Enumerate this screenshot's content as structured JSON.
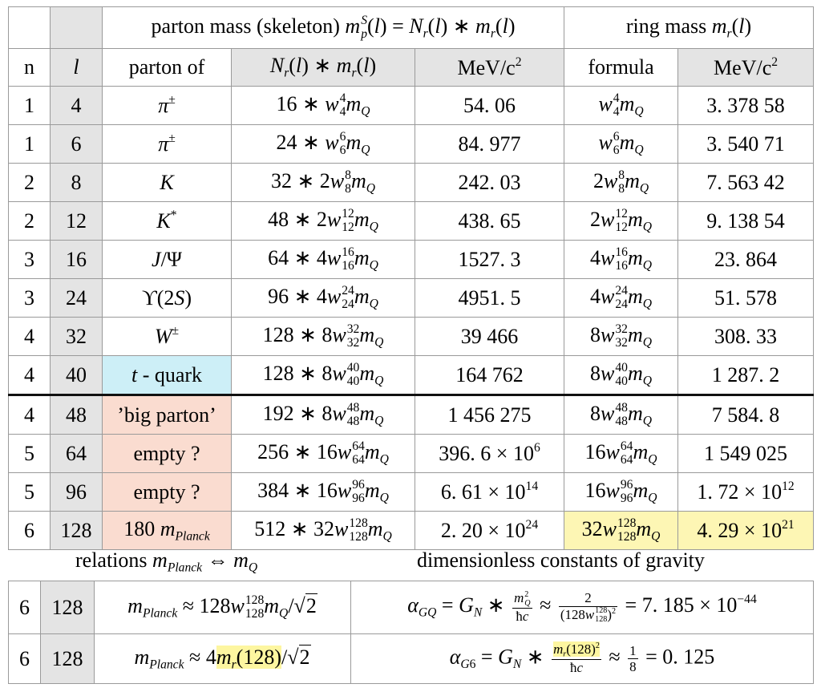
{
  "table": {
    "group_headers": [
      "parton mass (skeleton) $m_{p}^{S}(l) = N_{r}(l) ∗ m_{r}(l)$",
      "ring mass $m_{r}(l)$"
    ],
    "header": [
      "n",
      "$l$",
      "parton of",
      "$N_{r}(l) ∗ m_{r}(l)$",
      "MeV/c$^{2}$",
      "formula",
      "MeV/c$^{2}$"
    ],
    "rows": [
      [
        "1",
        "4",
        "$π^{±}$",
        "$16 ∗ w_{4}^{4}m_{Q}$",
        "54. 06",
        "$w_{4}^{4}m_{Q}$",
        "3. 378 58"
      ],
      [
        "1",
        "6",
        "$π^{±}$",
        "$24 ∗ w_{6}^{6}m_{Q}$",
        "84. 977",
        "$w_{6}^{6}m_{Q}$",
        "3. 540 71"
      ],
      [
        "2",
        "8",
        "$K$",
        "$32 ∗ 2w_{8}^{8}m_{Q}$",
        "242. 03",
        "$2w_{8}^{8}m_{Q}$",
        "7. 563 42"
      ],
      [
        "2",
        "12",
        "$K^{*}$",
        "$48 ∗ 2w_{12}^{12}m_{Q}$",
        "438. 65",
        "$2w_{12}^{12}m_{Q}$",
        "9. 138 54"
      ],
      [
        "3",
        "16",
        "$J/Ψ$",
        "$64 ∗ 4w_{16}^{16}m_{Q}$",
        "1527. 3",
        "$4w_{16}^{16}m_{Q}$",
        "23. 864"
      ],
      [
        "3",
        "24",
        "$ϒ(2S)$",
        "$96 ∗ 4w_{24}^{24}m_{Q}$",
        "4951. 5",
        "$4w_{24}^{24}m_{Q}$",
        "51. 578"
      ],
      [
        "4",
        "32",
        "$W^{±}$",
        "$128 ∗ 8w_{32}^{32}m_{Q}$",
        "39 466",
        "$8w_{32}^{32}m_{Q}$",
        "308. 33"
      ],
      [
        "4",
        "40",
        "$t$ - quark",
        "$128 ∗ 8w_{40}^{40}m_{Q}$",
        "164 762",
        "$8w_{40}^{40}m_{Q}$",
        "1 287. 2"
      ],
      [
        "4",
        "48",
        "’big parton’",
        "$192 ∗ 8w_{48}^{48}m_{Q}$",
        "1 456 275",
        "$8w_{48}^{48}m_{Q}$",
        "7 584. 8"
      ],
      [
        "5",
        "64",
        "empty ?",
        "$256 ∗ 16w_{64}^{64}m_{Q}$",
        "396. 6 × 10$^{6}$",
        "$16w_{64}^{64}m_{Q}$",
        "1 549 025"
      ],
      [
        "5",
        "96",
        "empty ?",
        "$384 ∗ 16w_{96}^{96}m_{Q}$",
        "6. 61 × 10$^{14}$",
        "$16w_{96}^{96}m_{Q}$",
        "1. 72 × 10$^{12}$"
      ],
      [
        "6",
        "128",
        "180 $m_{Planck}$",
        "$512 ∗ 32w_{128}^{128}m_{Q}$",
        "2. 20 × 10$^{24}$",
        "$32w_{128}^{128}m_{Q}$",
        "4. 29 × 10$^{21}$"
      ]
    ]
  },
  "relations": {
    "title": "relations $m_{Planck}$ ⇔ $m_{Q}$"
  },
  "constants": {
    "title": "dimensionless constants of gravity"
  },
  "formulas": {
    "rows": [
      [
        "6",
        "128",
        "$m_{Planck} ≈ 128w_{128}^{128}m_{Q}/\\sqrt{2}$",
        "$α_{GQ} = G_{N} ∗ \\frac{m_{Q}^{2}}{ħc} ≈ \\frac{2}{(128w_{128}^{128})^{2}} = 7. 185 × 10^{−44}$"
      ],
      [
        "6",
        "128",
        "$m_{Planck} ≈ 4\\hl{m_{r}(128)}/\\sqrt{2}$",
        "$α_{G6} = G_{N} ∗ \\frac{\\hl{m_{r}(128)^{2}}}{ħc} ≈ \\frac{1}{8} = 0. 125$"
      ]
    ]
  }
}
